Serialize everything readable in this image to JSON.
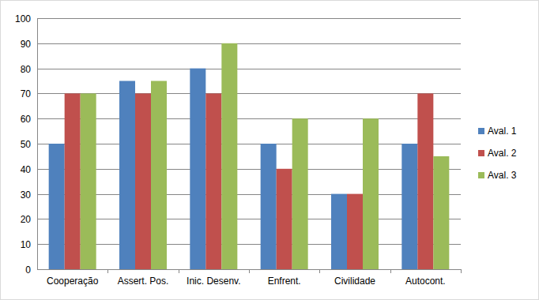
{
  "chart_data": {
    "type": "bar",
    "categories": [
      "Cooperação",
      "Assert. Pos.",
      "Inic. Desenv.",
      "Enfrent.",
      "Civilidade",
      "Autocont."
    ],
    "series": [
      {
        "name": "Aval. 1",
        "color": "#4f81bd",
        "values": [
          50,
          75,
          80,
          50,
          30,
          50
        ]
      },
      {
        "name": "Aval. 2",
        "color": "#c0504d",
        "values": [
          70,
          70,
          70,
          40,
          30,
          70
        ]
      },
      {
        "name": "Aval. 3",
        "color": "#9bbb59",
        "values": [
          70,
          75,
          90,
          60,
          60,
          45
        ]
      }
    ],
    "ylim": [
      0,
      100
    ],
    "yticks": [
      0,
      10,
      20,
      30,
      40,
      50,
      60,
      70,
      80,
      90,
      100
    ],
    "grid": true,
    "legend": "right"
  }
}
